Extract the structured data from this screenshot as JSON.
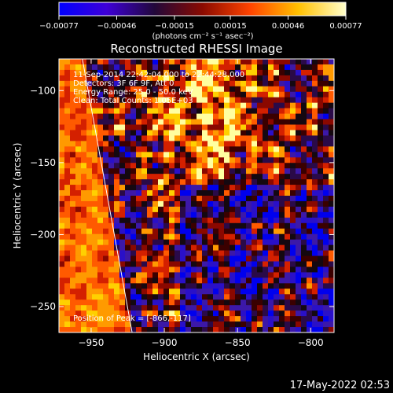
{
  "chart_data": {
    "type": "heatmap",
    "title": "Reconstructed RHESSI Image",
    "xlabel": "Heliocentric X (arcsec)",
    "ylabel": "Heliocentric Y (arcsec)",
    "xlim": [
      -972,
      -784
    ],
    "ylim": [
      -268,
      -78
    ],
    "x_ticks": [
      -950,
      -900,
      -850,
      -800
    ],
    "y_ticks": [
      -100,
      -150,
      -200,
      -250
    ],
    "x_tick_labels": [
      "−950",
      "−900",
      "−850",
      "−800"
    ],
    "y_tick_labels": [
      "−100",
      "−150",
      "−200",
      "−250"
    ],
    "colorbar": {
      "min": -0.00077,
      "max": 0.00077,
      "ticks": [
        -0.00077,
        -0.00046,
        -0.00015,
        0.00015,
        0.00046,
        0.00077
      ],
      "tick_labels": [
        "−0.00077",
        "−0.00046",
        "−0.00015",
        "0.00015",
        "0.00046",
        "0.00077"
      ],
      "unit_label": "(photons cm⁻² s⁻¹ asec⁻²)",
      "colors": [
        "#0000ff",
        "#3e00d8",
        "#22083a",
        "#8a0a00",
        "#ff4400",
        "#ffc000",
        "#ffffcc"
      ]
    },
    "annotations": [
      "11-Sep-2014 22:42:04.000 to 22:44:28.000",
      "Detectors: 3F 6F 9F, Att 0",
      "Energy Range: 25.0 - 50.0 keV",
      "Clean:   Total Counts: 1.05E+03"
    ],
    "peak_label": "Position of Peak = [-866,-117]",
    "peak": [
      -866,
      -117
    ],
    "limb_line": [
      [
        -956,
        -78
      ],
      [
        -922,
        -268
      ]
    ],
    "grid": false
  },
  "footer": {
    "timestamp": "17-May-2022 02:53"
  }
}
